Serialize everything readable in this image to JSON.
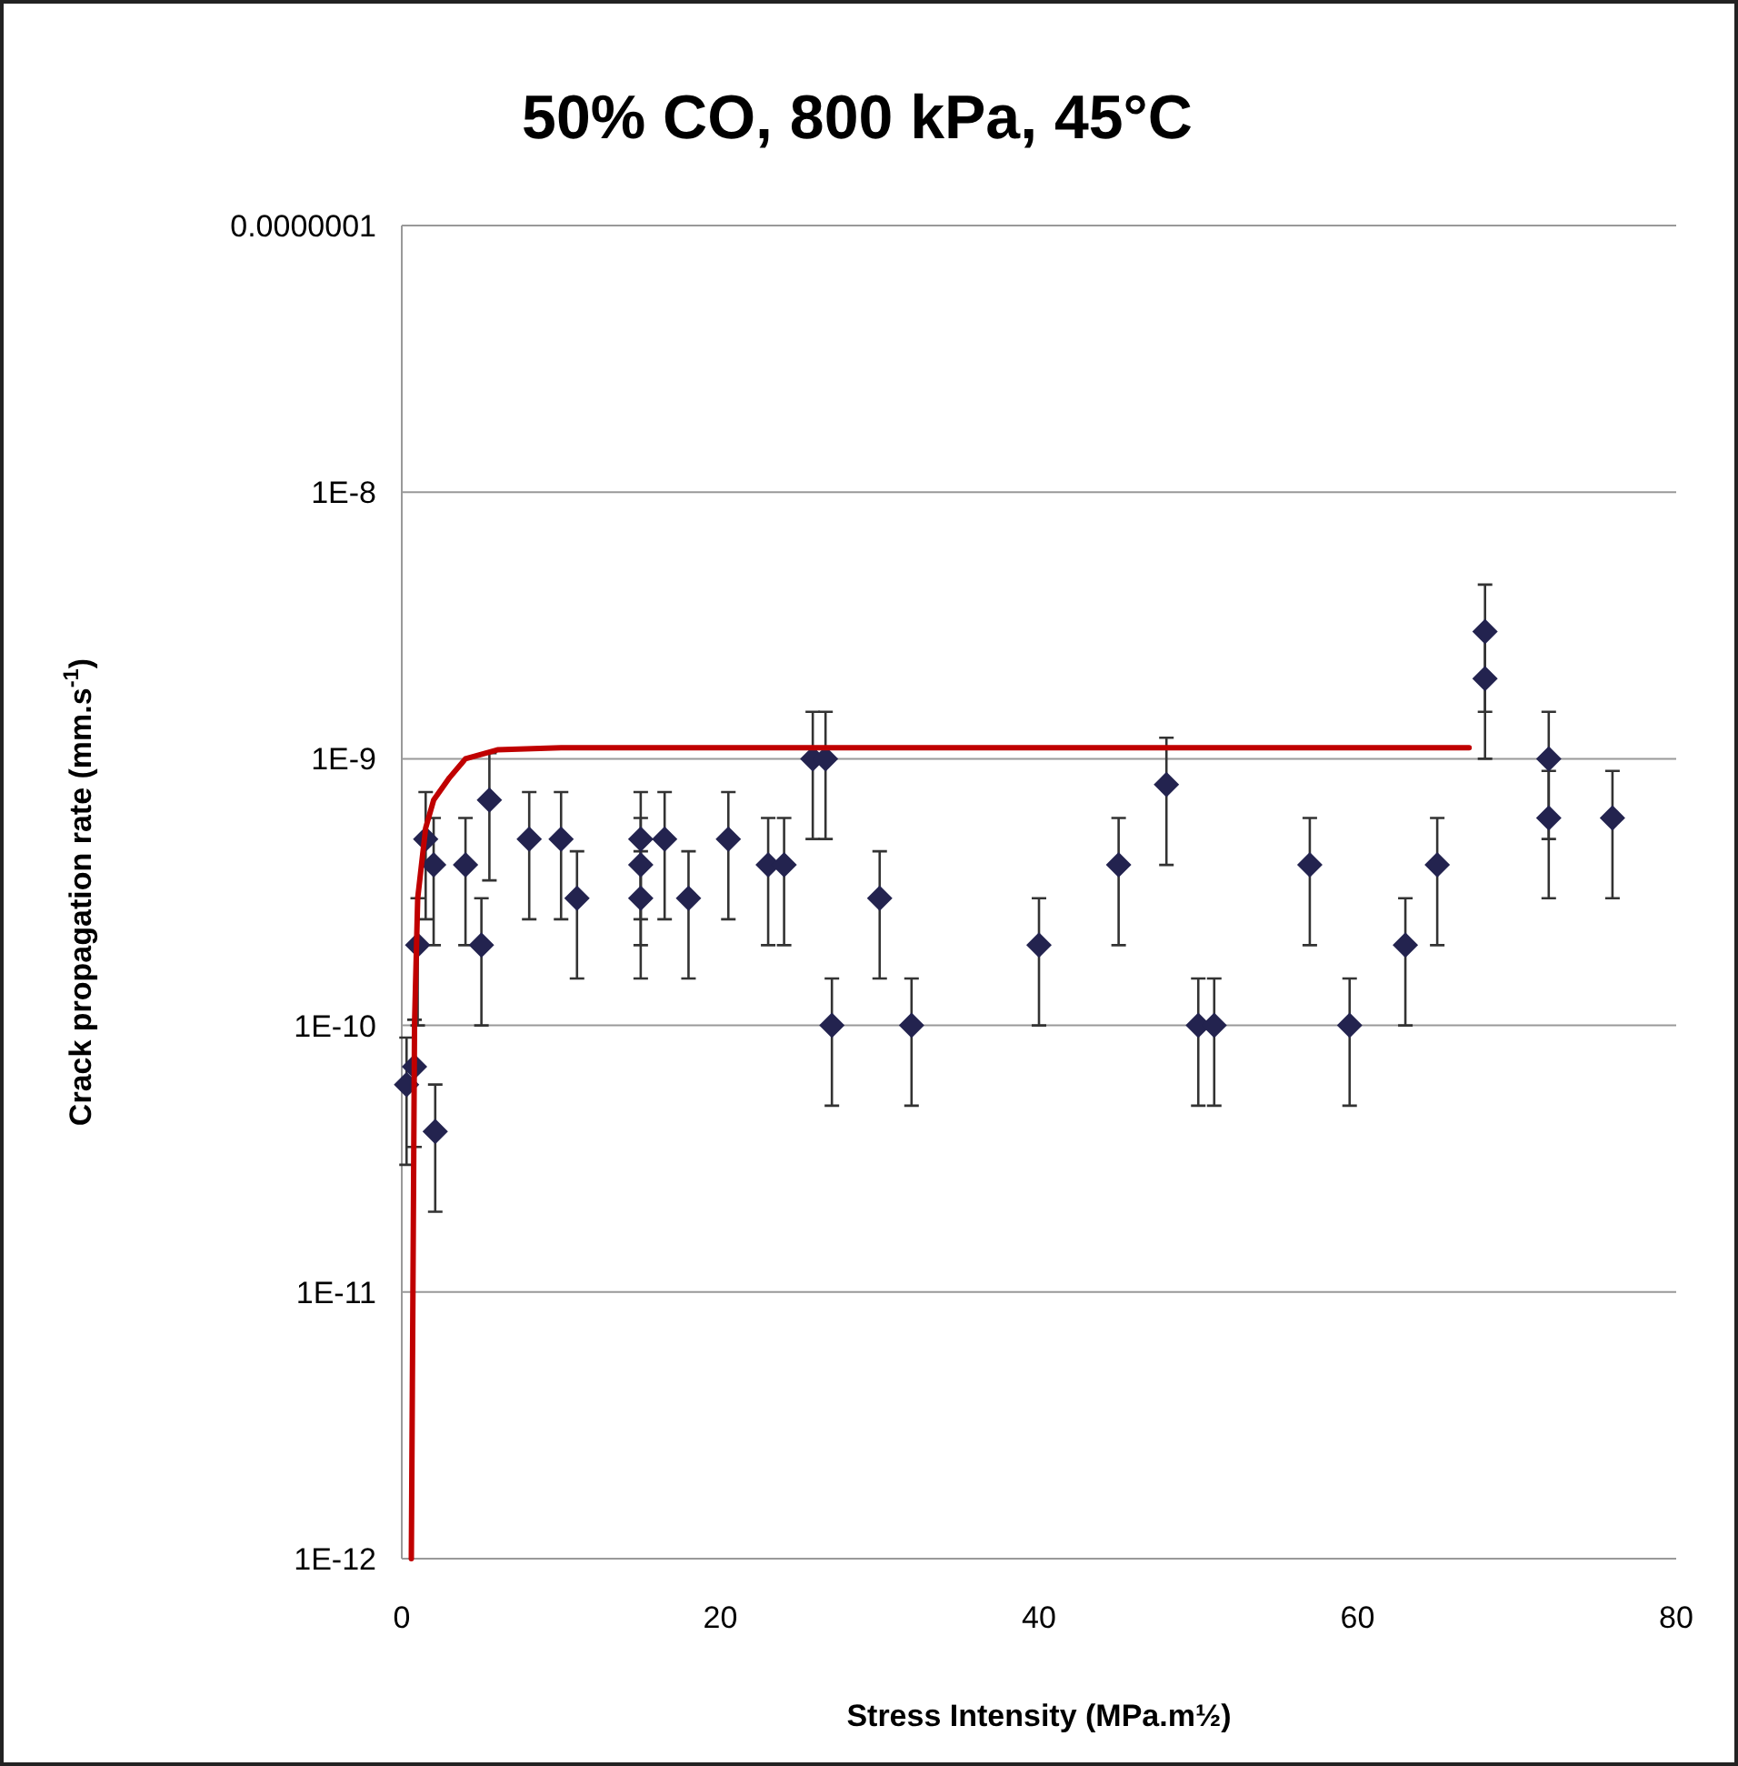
{
  "chart_data": {
    "type": "scatter",
    "title": "50% CO, 800 kPa, 45°C",
    "xlabel": "Stress Intensity (MPa.m½)",
    "ylabel": "Crack propagation rate (mm.s$^{-1}$)",
    "log": "y",
    "grid": "y",
    "marker": "diamond",
    "xlim": [
      0,
      80
    ],
    "xticks": [
      0,
      20,
      40,
      60,
      80
    ],
    "ylim": [
      1e-12,
      1e-07
    ],
    "yticks": [
      {
        "value": 1e-12,
        "label": "1E-12"
      },
      {
        "value": 1e-11,
        "label": "1E-11"
      },
      {
        "value": 1e-10,
        "label": "1E-10"
      },
      {
        "value": 1e-09,
        "label": "1E-9"
      },
      {
        "value": 1e-08,
        "label": "1E-8"
      },
      {
        "value": 1e-07,
        "label": "0.0000001"
      }
    ],
    "series": [
      {
        "color": "#23234f",
        "x": [
          0.3,
          0.8,
          1.0,
          1.5,
          2.1,
          2.0,
          4,
          5,
          5.5,
          8,
          10,
          11,
          15,
          15,
          15,
          16.5,
          18,
          20.5,
          23,
          24,
          25.8,
          26.6,
          27,
          30,
          32,
          40,
          45,
          48,
          50,
          51,
          57,
          59.5,
          63,
          65,
          68,
          68,
          72,
          72,
          76
        ],
        "values": [
          6e-11,
          7e-11,
          2e-10,
          5e-10,
          4e-11,
          4e-10,
          4e-10,
          2e-10,
          7e-10,
          5e-10,
          5e-10,
          3e-10,
          5e-10,
          4e-10,
          3e-10,
          5e-10,
          3e-10,
          5e-10,
          4e-10,
          4e-10,
          1e-09,
          1e-09,
          1e-10,
          3e-10,
          1e-10,
          2e-10,
          4e-10,
          8e-10,
          1e-10,
          1e-10,
          4e-10,
          1e-10,
          2e-10,
          4e-10,
          3e-09,
          2e-09,
          1e-09,
          6e-10,
          6e-10
        ],
        "errors": [
          3e-11,
          3.5e-11,
          1e-10,
          2.5e-10,
          2e-11,
          2e-10,
          2e-10,
          1e-10,
          3.5e-10,
          2.5e-10,
          2.5e-10,
          1.5e-10,
          2.5e-10,
          2e-10,
          1.5e-10,
          2.5e-10,
          1.5e-10,
          2.5e-10,
          2e-10,
          2e-10,
          5e-10,
          5e-10,
          5e-11,
          1.5e-10,
          5e-11,
          1e-10,
          2e-10,
          4e-10,
          5e-11,
          5e-11,
          2e-10,
          5e-11,
          1e-10,
          2e-10,
          1.5e-09,
          1e-09,
          5e-10,
          3e-10,
          3e-10
        ]
      },
      {
        "type": "line",
        "color": "#c00000",
        "line_style": "solid",
        "marker": "none",
        "x": [
          0.6,
          0.7,
          0.8,
          1.0,
          1.5,
          2,
          3,
          4,
          6,
          10,
          67
        ],
        "values": [
          1e-12,
          1e-11,
          1e-10,
          3e-10,
          5.5e-10,
          7e-10,
          8.5e-10,
          1e-09,
          1.08e-09,
          1.1e-09,
          1.1e-09
        ]
      }
    ]
  }
}
